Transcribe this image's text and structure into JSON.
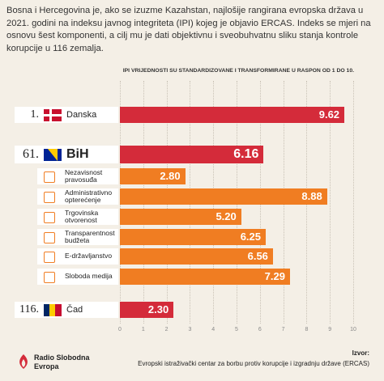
{
  "intro": "Bosna i Hercegovina je, ako se izuzme Kazahstan, najlošije rangirana evropska država u 2021. godini na indeksu javnog integriteta (IPI) kojeg je objavio ERCAS. Indeks se mjeri na osnovu šest komponenti, a cilj mu je dati objektivnu i sveobuhvatnu sliku stanja kontrole korupcije u 116 zemalja.",
  "chart_data": {
    "type": "bar",
    "orientation": "horizontal",
    "xlabel": "IPI VRIJEDNOSTI SU STANDARDIZOVANE I TRANSFORMIRANE U RASPON OD 1 DO 10.",
    "categories": [
      "Danska",
      "BiH",
      "Nezavisnost pravosuđa",
      "Administrativno opterećenje",
      "Trgovinska otvorenost",
      "Transparentnost budžeta",
      "E-državljanstvo",
      "Sloboda medija",
      "Čad"
    ],
    "ranks": [
      "1.",
      "61.",
      null,
      null,
      null,
      null,
      null,
      null,
      "116."
    ],
    "values": [
      9.62,
      6.16,
      2.8,
      8.88,
      5.2,
      6.25,
      6.56,
      7.29,
      2.3
    ],
    "value_labels": [
      "9.62",
      "6.16",
      "2.80",
      "8.88",
      "5.20",
      "6.25",
      "6.56",
      "7.29",
      "2.30"
    ],
    "colors": [
      "#d42b3a",
      "#d42b3a",
      "#f07d22",
      "#f07d22",
      "#f07d22",
      "#f07d22",
      "#f07d22",
      "#f07d22",
      "#d42b3a"
    ],
    "xlim": [
      0,
      10
    ],
    "xticks": [
      0,
      1,
      2,
      3,
      4,
      5,
      6,
      7,
      8,
      9,
      10
    ],
    "grid": true
  },
  "logo": "Radio Slobodna Evropa",
  "source_label": "Izvor:",
  "source": "Evropski istraživački centar za borbu protiv korupcije i izgradnju države (ERCAS)"
}
